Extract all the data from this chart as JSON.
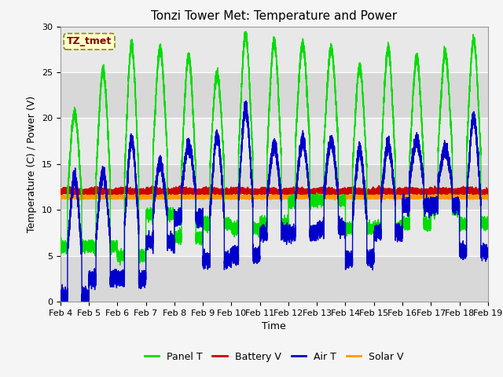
{
  "title": "Tonzi Tower Met: Temperature and Power",
  "xlabel": "Time",
  "ylabel": "Temperature (C) / Power (V)",
  "ylim": [
    0,
    30
  ],
  "xtick_labels": [
    "Feb 4",
    "Feb 5",
    "Feb 6",
    "Feb 7",
    "Feb 8",
    "Feb 9",
    "Feb 10",
    "Feb 11",
    "Feb 12",
    "Feb 13",
    "Feb 14",
    "Feb 15",
    "Feb 16",
    "Feb 17",
    "Feb 18",
    "Feb 19"
  ],
  "ytick_values": [
    0,
    5,
    10,
    15,
    20,
    25,
    30
  ],
  "panel_t_color": "#00dd00",
  "battery_v_color": "#cc0000",
  "air_t_color": "#0000cc",
  "solar_v_color": "#ff9900",
  "legend_label_panel": "Panel T",
  "legend_label_battery": "Battery V",
  "legend_label_air": "Air T",
  "legend_label_solar": "Solar V",
  "annotation_text": "TZ_tmet",
  "plot_bg_color": "#e8e8e8",
  "fig_bg_color": "#f5f5f5",
  "grid_color": "#ffffff",
  "title_fontsize": 11,
  "axis_label_fontsize": 9,
  "tick_fontsize": 8,
  "battery_v_mean": 12.0,
  "solar_v_mean": 11.4,
  "n_pts": 15000
}
